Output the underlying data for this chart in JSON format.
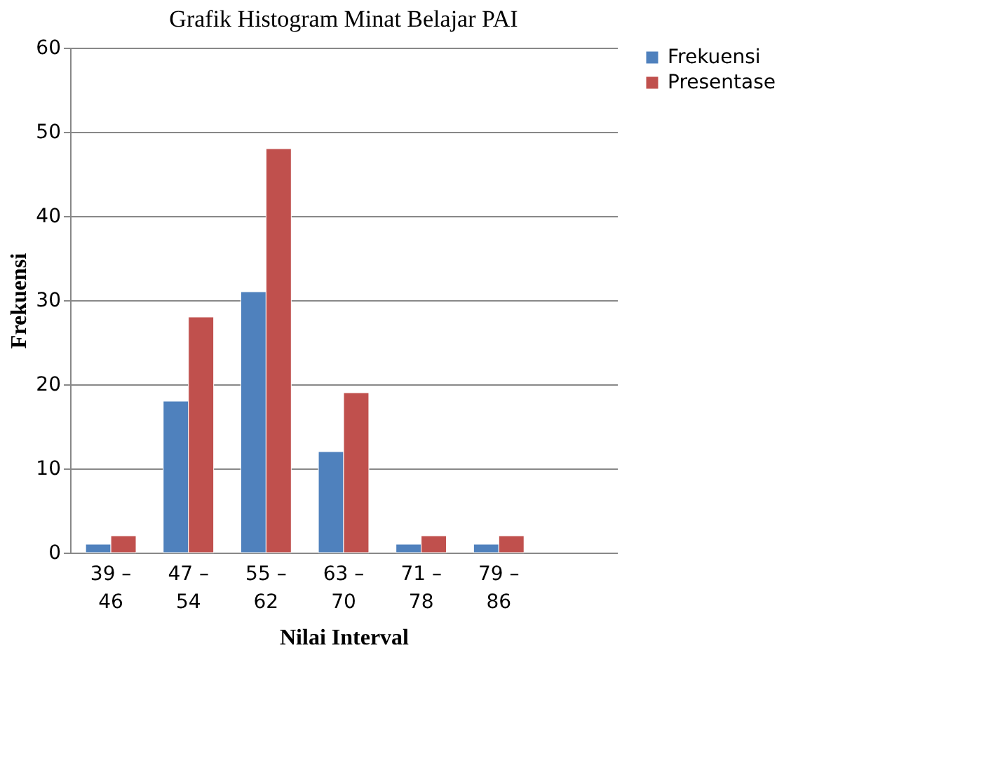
{
  "chart_data": {
    "type": "bar",
    "title": "Grafik Histogram Minat Belajar PAI",
    "xlabel": "Nilai Interval",
    "ylabel": "Frekuensi",
    "categories": [
      "39 – 46",
      "47 – 54",
      "55 – 62",
      "63 – 70",
      "71 – 78",
      "79 – 86",
      null
    ],
    "series": [
      {
        "name": "Frekuensi",
        "color": "#4f81bd",
        "values": [
          1,
          18,
          31,
          12,
          1,
          1,
          null
        ]
      },
      {
        "name": "Presentase",
        "color": "#c0504d",
        "values": [
          2,
          28,
          48,
          19,
          2,
          2,
          null
        ]
      }
    ],
    "ylim": [
      0,
      60
    ],
    "yticks": [
      0,
      10,
      20,
      30,
      40,
      50,
      60
    ],
    "grid": "y",
    "legend": "right"
  }
}
